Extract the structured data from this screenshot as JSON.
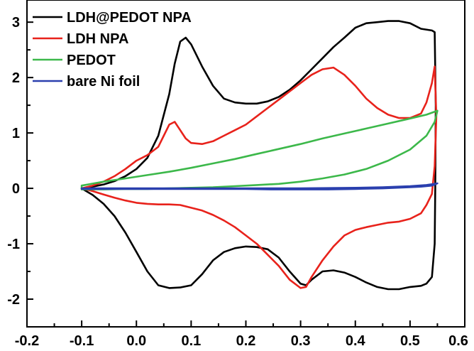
{
  "chart_data": {
    "type": "line",
    "title": "",
    "xlabel": "",
    "ylabel": "",
    "xlim": [
      -0.2,
      0.6
    ],
    "ylim": [
      -2.5,
      3.4
    ],
    "x_ticks": [
      "-0.2",
      "-0.1",
      "0.0",
      "0.1",
      "0.2",
      "0.3",
      "0.4",
      "0.5",
      "0.6"
    ],
    "y_ticks": [
      "-2",
      "-1",
      "0",
      "1",
      "2",
      "3"
    ],
    "x_tick_values": [
      -0.2,
      -0.1,
      0.0,
      0.1,
      0.2,
      0.3,
      0.4,
      0.5,
      0.6
    ],
    "y_tick_values": [
      -2,
      -1,
      0,
      1,
      2,
      3
    ],
    "grid": false,
    "legend_position": "top-left",
    "series": [
      {
        "name": "LDH@PEDOT NPA",
        "color": "#000000",
        "points": [
          [
            -0.1,
            0.0
          ],
          [
            -0.08,
            0.03
          ],
          [
            -0.06,
            0.07
          ],
          [
            -0.04,
            0.13
          ],
          [
            -0.02,
            0.22
          ],
          [
            0.0,
            0.35
          ],
          [
            0.02,
            0.55
          ],
          [
            0.04,
            0.95
          ],
          [
            0.06,
            1.7
          ],
          [
            0.07,
            2.25
          ],
          [
            0.08,
            2.65
          ],
          [
            0.09,
            2.72
          ],
          [
            0.1,
            2.6
          ],
          [
            0.12,
            2.2
          ],
          [
            0.14,
            1.85
          ],
          [
            0.16,
            1.62
          ],
          [
            0.18,
            1.55
          ],
          [
            0.2,
            1.53
          ],
          [
            0.22,
            1.53
          ],
          [
            0.24,
            1.57
          ],
          [
            0.26,
            1.65
          ],
          [
            0.28,
            1.78
          ],
          [
            0.3,
            1.95
          ],
          [
            0.32,
            2.15
          ],
          [
            0.34,
            2.35
          ],
          [
            0.36,
            2.55
          ],
          [
            0.38,
            2.72
          ],
          [
            0.4,
            2.9
          ],
          [
            0.42,
            2.98
          ],
          [
            0.44,
            3.0
          ],
          [
            0.46,
            3.02
          ],
          [
            0.48,
            3.02
          ],
          [
            0.5,
            2.98
          ],
          [
            0.52,
            2.88
          ],
          [
            0.54,
            2.85
          ],
          [
            0.545,
            2.82
          ],
          [
            0.547,
            1.5
          ],
          [
            0.546,
            0.0
          ],
          [
            0.545,
            -1.0
          ],
          [
            0.54,
            -1.6
          ],
          [
            0.53,
            -1.72
          ],
          [
            0.52,
            -1.76
          ],
          [
            0.5,
            -1.78
          ],
          [
            0.48,
            -1.82
          ],
          [
            0.46,
            -1.82
          ],
          [
            0.44,
            -1.78
          ],
          [
            0.42,
            -1.7
          ],
          [
            0.4,
            -1.6
          ],
          [
            0.38,
            -1.52
          ],
          [
            0.36,
            -1.48
          ],
          [
            0.34,
            -1.5
          ],
          [
            0.32,
            -1.65
          ],
          [
            0.31,
            -1.75
          ],
          [
            0.3,
            -1.72
          ],
          [
            0.28,
            -1.5
          ],
          [
            0.26,
            -1.25
          ],
          [
            0.24,
            -1.1
          ],
          [
            0.22,
            -1.06
          ],
          [
            0.2,
            -1.05
          ],
          [
            0.18,
            -1.08
          ],
          [
            0.16,
            -1.15
          ],
          [
            0.14,
            -1.3
          ],
          [
            0.12,
            -1.55
          ],
          [
            0.1,
            -1.75
          ],
          [
            0.08,
            -1.79
          ],
          [
            0.06,
            -1.8
          ],
          [
            0.04,
            -1.75
          ],
          [
            0.02,
            -1.5
          ],
          [
            0.0,
            -1.15
          ],
          [
            -0.02,
            -0.8
          ],
          [
            -0.04,
            -0.5
          ],
          [
            -0.06,
            -0.28
          ],
          [
            -0.08,
            -0.12
          ],
          [
            -0.1,
            0.0
          ]
        ]
      },
      {
        "name": "LDH NPA",
        "color": "#e8221b",
        "points": [
          [
            -0.1,
            0.0
          ],
          [
            -0.08,
            0.05
          ],
          [
            -0.06,
            0.12
          ],
          [
            -0.04,
            0.22
          ],
          [
            -0.02,
            0.35
          ],
          [
            0.0,
            0.5
          ],
          [
            0.02,
            0.6
          ],
          [
            0.04,
            0.75
          ],
          [
            0.05,
            0.95
          ],
          [
            0.06,
            1.15
          ],
          [
            0.07,
            1.2
          ],
          [
            0.08,
            1.05
          ],
          [
            0.09,
            0.9
          ],
          [
            0.1,
            0.82
          ],
          [
            0.12,
            0.8
          ],
          [
            0.14,
            0.85
          ],
          [
            0.16,
            0.95
          ],
          [
            0.18,
            1.05
          ],
          [
            0.2,
            1.15
          ],
          [
            0.22,
            1.3
          ],
          [
            0.24,
            1.45
          ],
          [
            0.26,
            1.6
          ],
          [
            0.28,
            1.75
          ],
          [
            0.3,
            1.9
          ],
          [
            0.32,
            2.05
          ],
          [
            0.34,
            2.15
          ],
          [
            0.36,
            2.18
          ],
          [
            0.38,
            2.05
          ],
          [
            0.4,
            1.85
          ],
          [
            0.42,
            1.62
          ],
          [
            0.44,
            1.45
          ],
          [
            0.46,
            1.33
          ],
          [
            0.48,
            1.27
          ],
          [
            0.5,
            1.27
          ],
          [
            0.52,
            1.35
          ],
          [
            0.53,
            1.55
          ],
          [
            0.54,
            1.9
          ],
          [
            0.545,
            2.2
          ],
          [
            0.548,
            1.3
          ],
          [
            0.545,
            0.4
          ],
          [
            0.54,
            -0.1
          ],
          [
            0.53,
            -0.3
          ],
          [
            0.52,
            -0.45
          ],
          [
            0.5,
            -0.55
          ],
          [
            0.48,
            -0.6
          ],
          [
            0.46,
            -0.62
          ],
          [
            0.44,
            -0.66
          ],
          [
            0.42,
            -0.7
          ],
          [
            0.4,
            -0.75
          ],
          [
            0.38,
            -0.85
          ],
          [
            0.36,
            -1.05
          ],
          [
            0.34,
            -1.3
          ],
          [
            0.32,
            -1.6
          ],
          [
            0.31,
            -1.78
          ],
          [
            0.3,
            -1.8
          ],
          [
            0.28,
            -1.65
          ],
          [
            0.26,
            -1.4
          ],
          [
            0.24,
            -1.2
          ],
          [
            0.22,
            -1.0
          ],
          [
            0.2,
            -0.85
          ],
          [
            0.18,
            -0.7
          ],
          [
            0.16,
            -0.58
          ],
          [
            0.14,
            -0.48
          ],
          [
            0.12,
            -0.4
          ],
          [
            0.1,
            -0.35
          ],
          [
            0.08,
            -0.3
          ],
          [
            0.06,
            -0.29
          ],
          [
            0.04,
            -0.29
          ],
          [
            0.02,
            -0.28
          ],
          [
            0.0,
            -0.26
          ],
          [
            -0.02,
            -0.22
          ],
          [
            -0.04,
            -0.17
          ],
          [
            -0.06,
            -0.11
          ],
          [
            -0.08,
            -0.05
          ],
          [
            -0.1,
            0.0
          ]
        ]
      },
      {
        "name": "PEDOT",
        "color": "#3cb84a",
        "points": [
          [
            -0.1,
            0.05
          ],
          [
            -0.06,
            0.12
          ],
          [
            -0.02,
            0.18
          ],
          [
            0.02,
            0.24
          ],
          [
            0.06,
            0.3
          ],
          [
            0.1,
            0.37
          ],
          [
            0.14,
            0.45
          ],
          [
            0.18,
            0.53
          ],
          [
            0.22,
            0.62
          ],
          [
            0.26,
            0.71
          ],
          [
            0.3,
            0.8
          ],
          [
            0.34,
            0.9
          ],
          [
            0.38,
            0.99
          ],
          [
            0.42,
            1.08
          ],
          [
            0.46,
            1.17
          ],
          [
            0.5,
            1.26
          ],
          [
            0.53,
            1.33
          ],
          [
            0.55,
            1.4
          ],
          [
            0.545,
            1.2
          ],
          [
            0.53,
            0.95
          ],
          [
            0.5,
            0.7
          ],
          [
            0.46,
            0.5
          ],
          [
            0.42,
            0.35
          ],
          [
            0.38,
            0.25
          ],
          [
            0.34,
            0.18
          ],
          [
            0.3,
            0.12
          ],
          [
            0.26,
            0.08
          ],
          [
            0.22,
            0.06
          ],
          [
            0.18,
            0.04
          ],
          [
            0.14,
            0.02
          ],
          [
            0.1,
            0.01
          ],
          [
            0.06,
            0.0
          ],
          [
            0.02,
            -0.01
          ],
          [
            -0.02,
            -0.01
          ],
          [
            -0.06,
            -0.02
          ],
          [
            -0.1,
            -0.02
          ],
          [
            -0.1,
            0.05
          ]
        ]
      },
      {
        "name": "bare Ni foil",
        "color": "#2a3fae",
        "points": [
          [
            -0.1,
            0.0
          ],
          [
            0.0,
            0.0
          ],
          [
            0.1,
            0.0
          ],
          [
            0.2,
            0.0
          ],
          [
            0.3,
            0.0
          ],
          [
            0.4,
            0.01
          ],
          [
            0.45,
            0.02
          ],
          [
            0.5,
            0.04
          ],
          [
            0.53,
            0.06
          ],
          [
            0.55,
            0.09
          ],
          [
            0.54,
            0.05
          ],
          [
            0.52,
            0.03
          ],
          [
            0.5,
            0.02
          ],
          [
            0.45,
            0.0
          ],
          [
            0.4,
            -0.01
          ],
          [
            0.35,
            -0.02
          ],
          [
            0.3,
            -0.02
          ],
          [
            0.25,
            -0.02
          ],
          [
            0.2,
            -0.01
          ],
          [
            0.1,
            -0.01
          ],
          [
            0.0,
            -0.01
          ],
          [
            -0.1,
            -0.01
          ],
          [
            -0.1,
            0.0
          ]
        ]
      }
    ]
  }
}
